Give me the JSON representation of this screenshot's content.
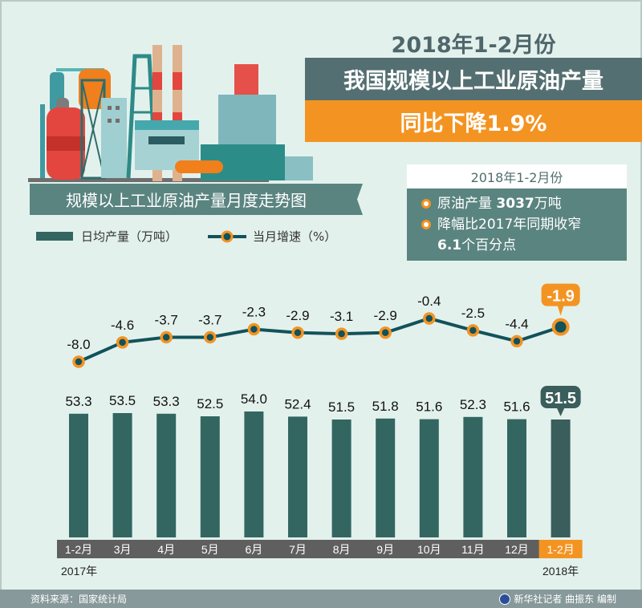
{
  "header": {
    "year_line": "2018年1-2月份",
    "main_title": "我国规模以上工业原油产量",
    "sub_title": "同比下降1.9%"
  },
  "banner": {
    "title": "规模以上工业原油产量月度走势图"
  },
  "legend": {
    "bar_label": "日均产量（万吨）",
    "line_label": "当月增速（%）"
  },
  "summary": {
    "period": "2018年1-2月份",
    "items": [
      {
        "text_prefix": "原油产量 ",
        "highlight": "3037",
        "text_suffix": "万吨"
      },
      {
        "text_prefix": "降幅比2017年同期收窄",
        "highlight": "6.1",
        "text_suffix": "个百分点"
      }
    ]
  },
  "colors": {
    "background": "#e3f1ed",
    "bar": "#336661",
    "line": "#12525a",
    "marker": "#f39422",
    "axis_band": "#5f5f5f",
    "highlight": "#f39422",
    "title_dark": "#546f72"
  },
  "chart_data": {
    "type": "bar",
    "title": "规模以上工业原油产量月度走势图",
    "categories": [
      "1-2月",
      "3月",
      "4月",
      "5月",
      "6月",
      "7月",
      "8月",
      "9月",
      "10月",
      "11月",
      "12月",
      "1-2月"
    ],
    "year_labels": {
      "start": "2017年",
      "end": "2018年"
    },
    "series": [
      {
        "name": "日均产量（万吨）",
        "type": "bar",
        "values": [
          53.3,
          53.5,
          53.3,
          52.5,
          54.0,
          52.4,
          51.5,
          51.8,
          51.6,
          52.3,
          51.6,
          51.5
        ]
      },
      {
        "name": "当月增速（%）",
        "type": "line",
        "values": [
          -8.0,
          -4.6,
          -3.7,
          -3.7,
          -2.3,
          -2.9,
          -3.1,
          -2.9,
          -0.4,
          -2.5,
          -4.4,
          -1.9
        ]
      }
    ],
    "highlight_index": 11,
    "xlabel": "",
    "ylabel": "",
    "grid": false,
    "legend": "top-left"
  },
  "footer": {
    "source": "资料来源：国家统计局",
    "credit": "新华社记者 曲振东 编制"
  }
}
